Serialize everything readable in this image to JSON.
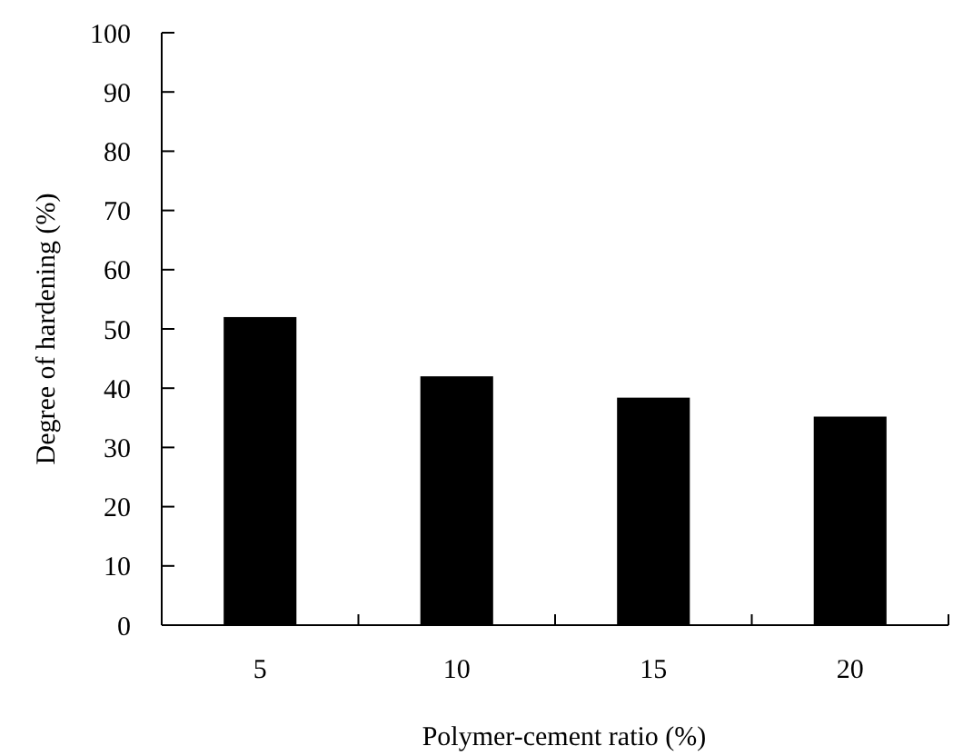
{
  "chart_data": {
    "type": "bar",
    "xlabel": "Polymer-cement ratio (%)",
    "ylabel": "Degree of hardening (%)",
    "categories": [
      "5",
      "10",
      "15",
      "20"
    ],
    "values": [
      52,
      42,
      38.4,
      35.2
    ],
    "color": "#000000",
    "ylim": [
      0,
      100
    ],
    "yticks": [
      0,
      10,
      20,
      30,
      40,
      50,
      60,
      70,
      80,
      90,
      100
    ],
    "grid": false
  }
}
